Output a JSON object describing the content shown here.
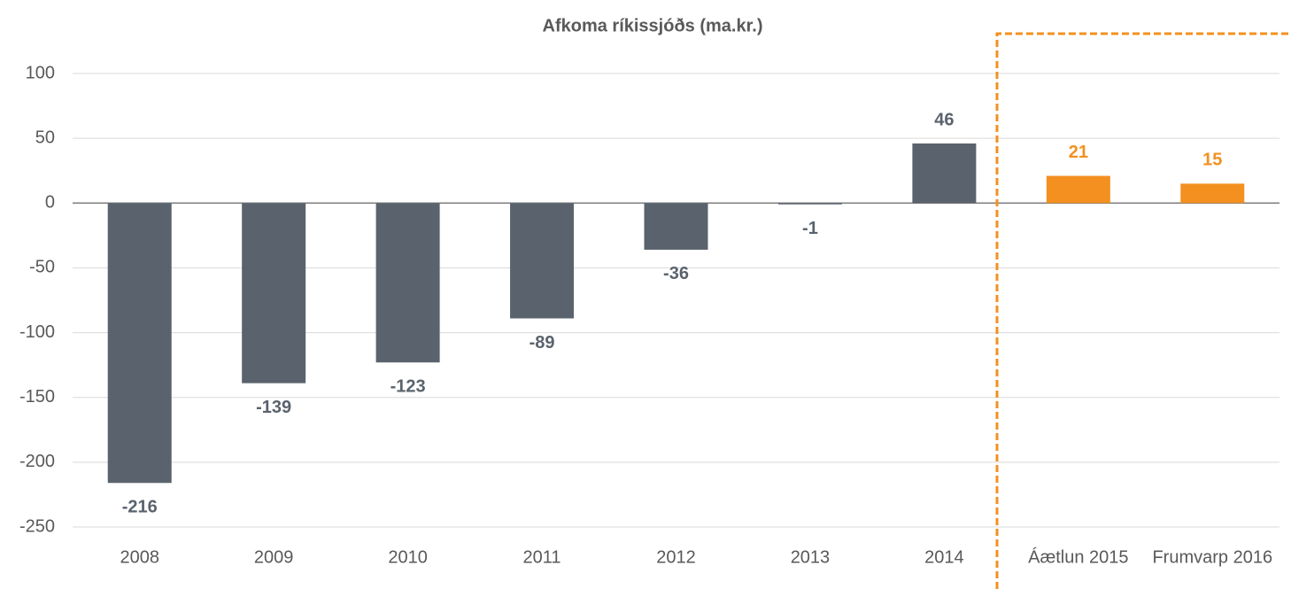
{
  "chart_data": {
    "type": "bar",
    "title": "Afkoma ríkissjóðs (ma.kr.)",
    "categories": [
      "2008",
      "2009",
      "2010",
      "2011",
      "2012",
      "2013",
      "2014",
      "Áætlun 2015",
      "Frumvarp 2016"
    ],
    "values": [
      -216,
      -139,
      -123,
      -89,
      -36,
      -1,
      46,
      21,
      15
    ],
    "colors": [
      "#5a636d",
      "#5a636d",
      "#5a636d",
      "#5a636d",
      "#5a636d",
      "#5a636d",
      "#5a636d",
      "#f39020",
      "#f39020"
    ],
    "ylim": [
      -250,
      100
    ],
    "yticks": [
      -250,
      -200,
      -150,
      -100,
      -50,
      0,
      50,
      100
    ],
    "grid": true
  }
}
